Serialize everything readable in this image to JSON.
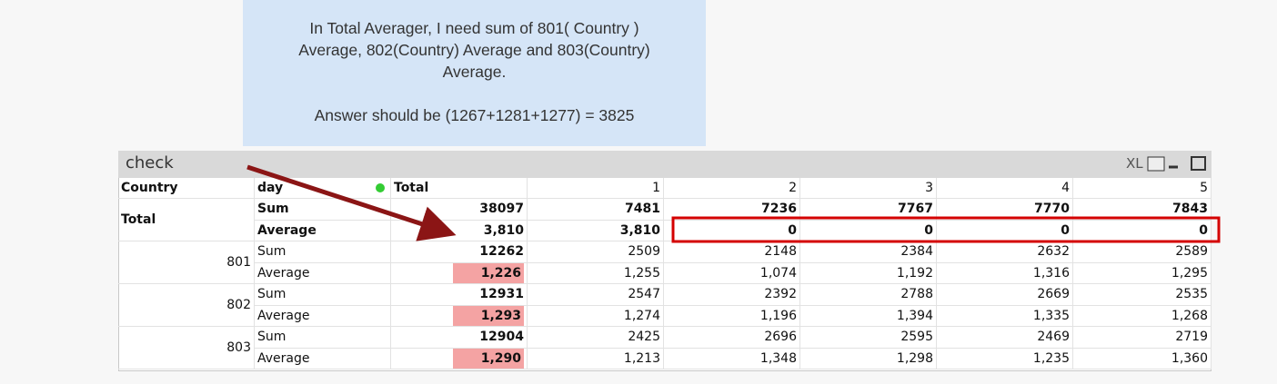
{
  "note": {
    "lines": [
      "In Total Averager,  I need sum of 801( Country )",
      "Average,  802(Country) Average and 803(Country)",
      "Average.",
      "Answer should be (1267+1281+1277) = 3825"
    ]
  },
  "window": {
    "title": "check",
    "xl": "XL"
  },
  "table": {
    "headers": [
      "Country",
      "day",
      "Total",
      "1",
      "2",
      "3",
      "4",
      "5"
    ],
    "total": {
      "label": "Total",
      "rows": [
        {
          "measure": "Sum",
          "cells": [
            "38097",
            "7481",
            "7236",
            "7767",
            "7770",
            "7843"
          ]
        },
        {
          "measure": "Average",
          "cells": [
            "3,810",
            "3,810",
            "0",
            "0",
            "0",
            "0"
          ]
        }
      ]
    },
    "groups": [
      {
        "label": "801",
        "rows": [
          {
            "measure": "Sum",
            "cells": [
              "12262",
              "2509",
              "2148",
              "2384",
              "2632",
              "2589"
            ]
          },
          {
            "measure": "Average",
            "cells": [
              "1,226",
              "1,255",
              "1,074",
              "1,192",
              "1,316",
              "1,295"
            ]
          }
        ]
      },
      {
        "label": "802",
        "rows": [
          {
            "measure": "Sum",
            "cells": [
              "12931",
              "2547",
              "2392",
              "2788",
              "2669",
              "2535"
            ]
          },
          {
            "measure": "Average",
            "cells": [
              "1,293",
              "1,274",
              "1,196",
              "1,394",
              "1,335",
              "1,268"
            ]
          }
        ]
      },
      {
        "label": "803",
        "rows": [
          {
            "measure": "Sum",
            "cells": [
              "12904",
              "2425",
              "2696",
              "2595",
              "2469",
              "2719"
            ]
          },
          {
            "measure": "Average",
            "cells": [
              "1,290",
              "1,213",
              "1,348",
              "1,298",
              "1,235",
              "1,360"
            ]
          }
        ]
      }
    ]
  }
}
